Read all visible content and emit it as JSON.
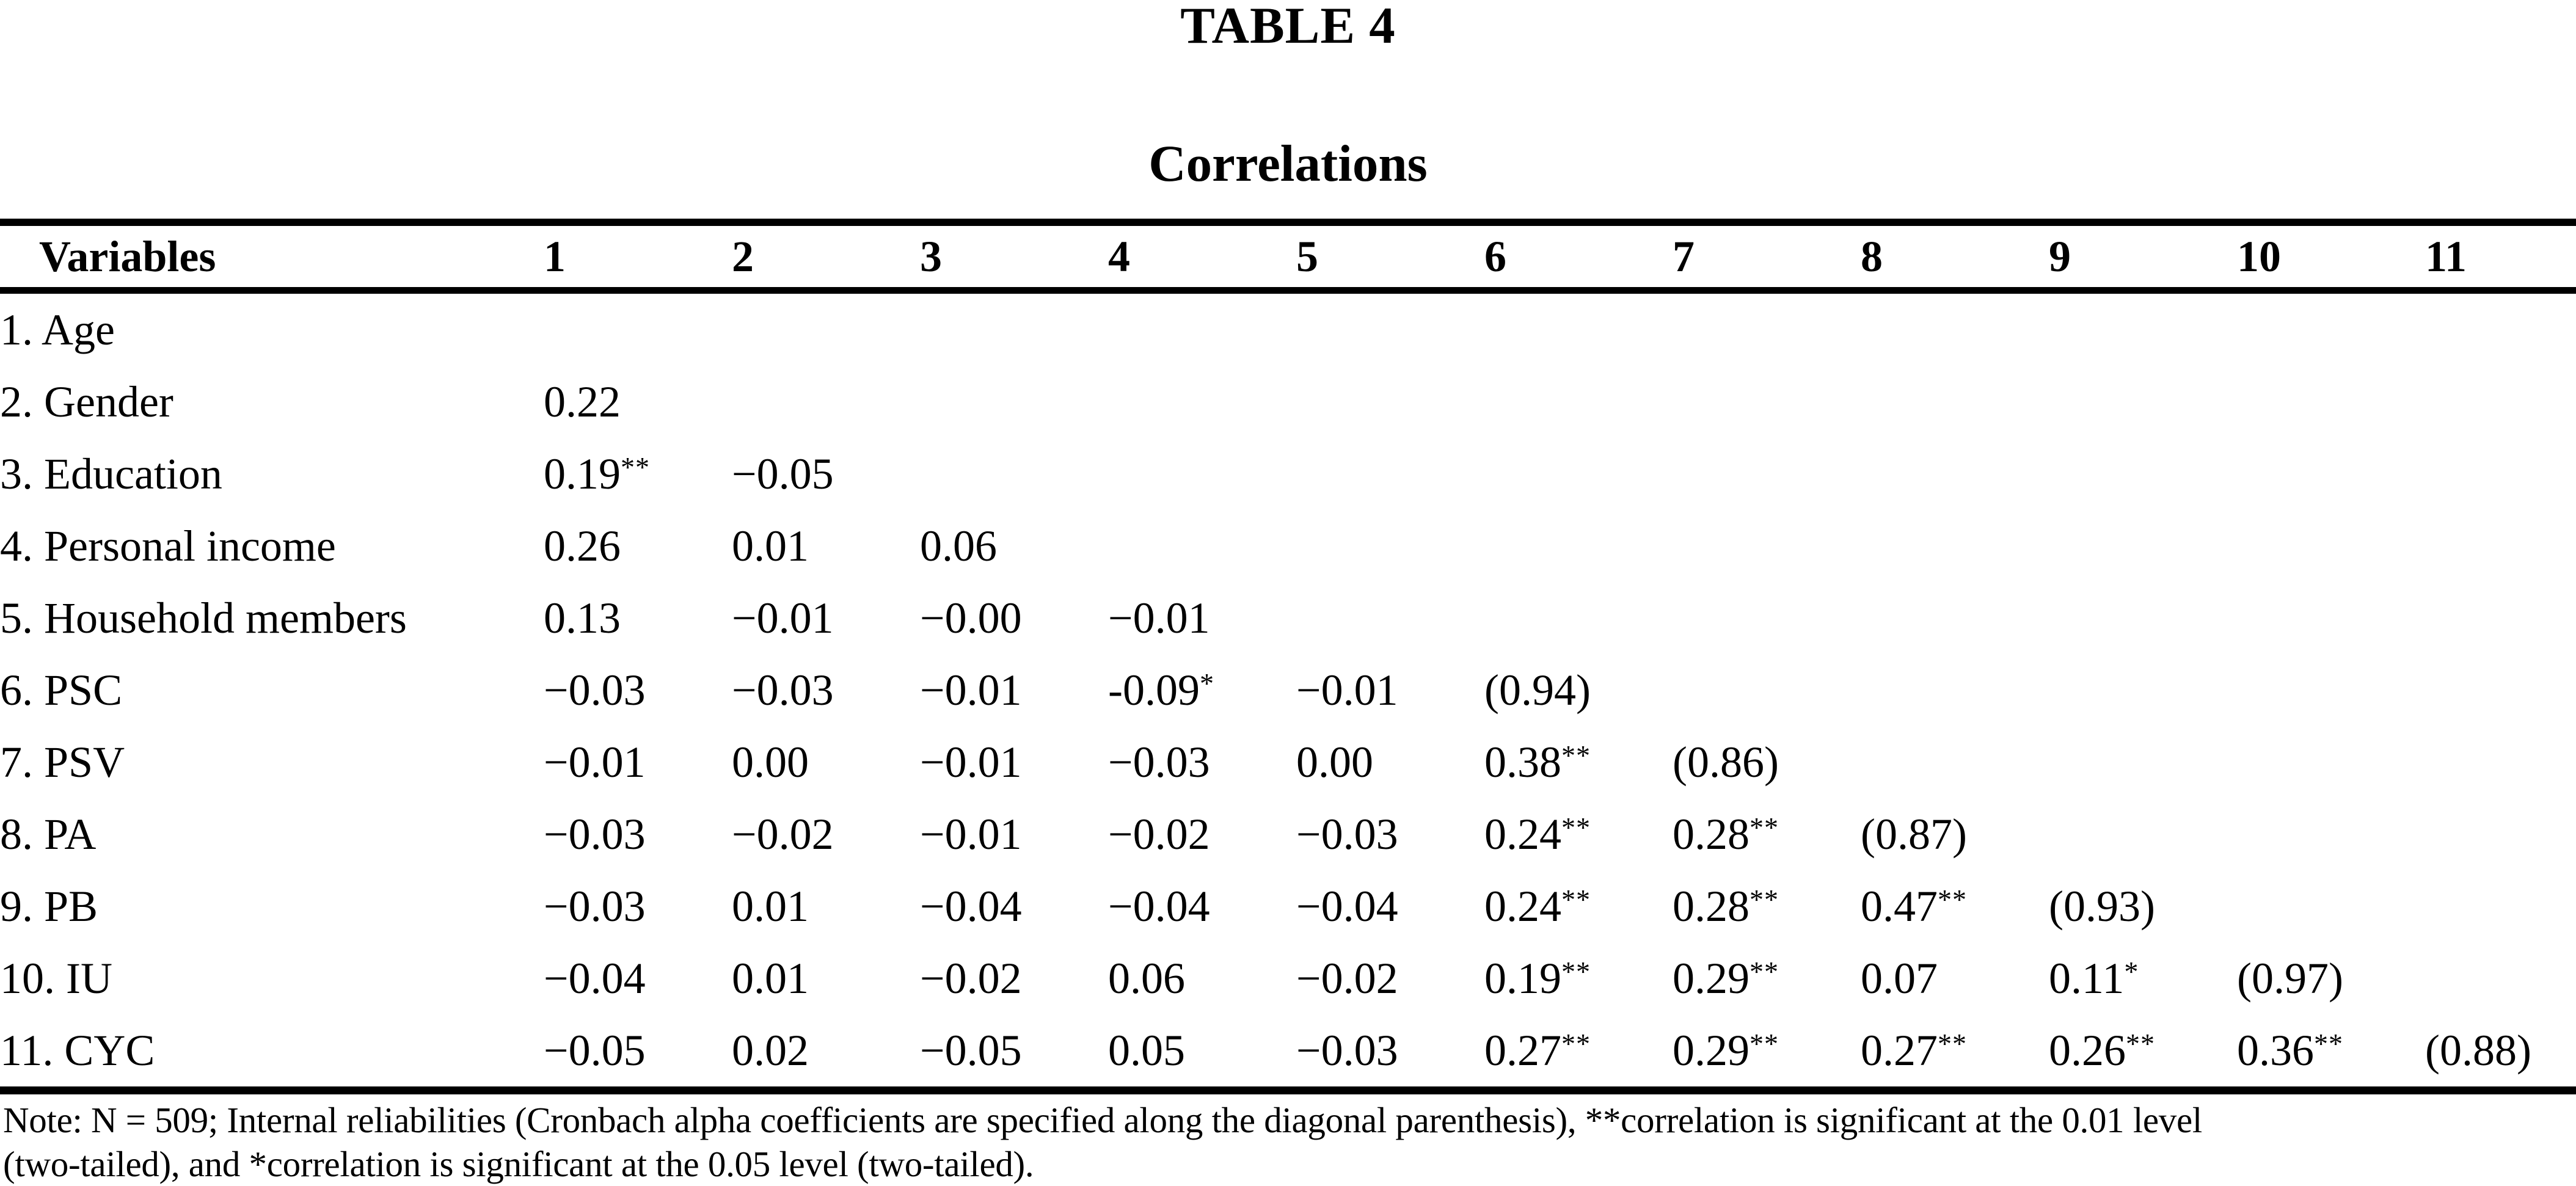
{
  "page": {
    "table_label": "TABLE 4",
    "table_title": "Correlations"
  },
  "table": {
    "columns": [
      "Variables",
      "1",
      "2",
      "3",
      "4",
      "5",
      "6",
      "7",
      "8",
      "9",
      "10",
      "11"
    ],
    "rows": [
      {
        "label": "1. Age",
        "values": [
          "",
          "",
          "",
          "",
          "",
          "",
          "",
          "",
          "",
          "",
          ""
        ]
      },
      {
        "label": "2. Gender",
        "values": [
          "0.22",
          "",
          "",
          "",
          "",
          "",
          "",
          "",
          "",
          "",
          ""
        ]
      },
      {
        "label": "3. Education",
        "values": [
          "0.19**",
          "−0.05",
          "",
          "",
          "",
          "",
          "",
          "",
          "",
          "",
          ""
        ]
      },
      {
        "label": "4. Personal income",
        "values": [
          "0.26",
          "0.01",
          "0.06",
          "",
          "",
          "",
          "",
          "",
          "",
          "",
          ""
        ]
      },
      {
        "label": "5. Household members",
        "values": [
          "0.13",
          "−0.01",
          "−0.00",
          "−0.01",
          "",
          "",
          "",
          "",
          "",
          "",
          ""
        ]
      },
      {
        "label": "6. PSC",
        "values": [
          "−0.03",
          "−0.03",
          "−0.01",
          "-0.09*",
          "−0.01",
          "(0.94)",
          "",
          "",
          "",
          "",
          ""
        ]
      },
      {
        "label": "7. PSV",
        "values": [
          "−0.01",
          "0.00",
          "−0.01",
          "−0.03",
          "0.00",
          "0.38**",
          "(0.86)",
          "",
          "",
          "",
          ""
        ]
      },
      {
        "label": "8. PA",
        "values": [
          "−0.03",
          "−0.02",
          "−0.01",
          "−0.02",
          "−0.03",
          "0.24**",
          "0.28**",
          "(0.87)",
          "",
          "",
          ""
        ]
      },
      {
        "label": "9. PB",
        "values": [
          "−0.03",
          "0.01",
          "−0.04",
          "−0.04",
          "−0.04",
          "0.24**",
          "0.28**",
          "0.47**",
          "(0.93)",
          "",
          ""
        ]
      },
      {
        "label": "10. IU",
        "values": [
          "−0.04",
          "0.01",
          "−0.02",
          "0.06",
          "−0.02",
          "0.19**",
          "0.29**",
          "0.07",
          "0.11*",
          "(0.97)",
          ""
        ]
      },
      {
        "label": "11. CYC",
        "values": [
          "−0.05",
          "0.02",
          "−0.05",
          "0.05",
          "−0.03",
          "0.27**",
          "0.29**",
          "0.27**",
          "0.26**",
          "0.36**",
          "(0.88)"
        ]
      }
    ]
  },
  "note": {
    "line1": "Note: N = 509; Internal reliabilities (Cronbach alpha coefficients are specified along the diagonal parenthesis), **correlation is significant at the 0.01 level",
    "line2": "(two-tailed), and *correlation is significant at the 0.05 level (two-tailed)."
  }
}
